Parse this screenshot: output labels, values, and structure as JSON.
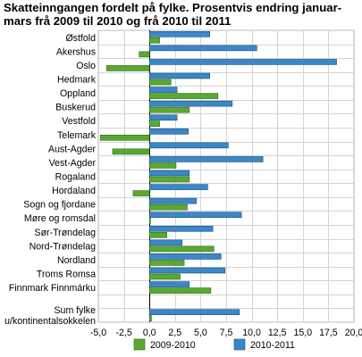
{
  "chart_data": {
    "type": "bar",
    "orientation": "horizontal",
    "title": "Skatteinngangen fordelt på fylke. Prosentvis endring januar-mars frå 2009 til 2010 og frå 2010 til 2011",
    "categories": [
      "Østfold",
      "Akershus",
      "Oslo",
      "Hedmark",
      "Oppland",
      "Buskerud",
      "Vestfold",
      "Telemark",
      "Aust-Agder",
      "Vest-Agder",
      "Rogaland",
      "Hordaland",
      "Sogn og fjordane",
      "Møre og romsdal",
      "Sør-Trøndelag",
      "Nord-Trøndelag",
      "Nordland",
      "Troms Romsa",
      "Finnmark Finnmárku",
      "",
      "Sum fylke u/kontinentalsokkelen"
    ],
    "category_lines": [
      [
        "Østfold"
      ],
      [
        "Akershus"
      ],
      [
        "Oslo"
      ],
      [
        "Hedmark"
      ],
      [
        "Oppland"
      ],
      [
        "Buskerud"
      ],
      [
        "Vestfold"
      ],
      [
        "Telemark"
      ],
      [
        "Aust-Agder"
      ],
      [
        "Vest-Agder"
      ],
      [
        "Rogaland"
      ],
      [
        "Hordaland"
      ],
      [
        "Sogn og fjordane"
      ],
      [
        "Møre og romsdal"
      ],
      [
        "Sør-Trøndelag"
      ],
      [
        "Nord-Trøndelag"
      ],
      [
        "Nordland"
      ],
      [
        "Troms Romsa"
      ],
      [
        "Finnmark Finnmárku"
      ],
      [],
      [
        "Sum fylke",
        "u/kontinentalsokkelen"
      ]
    ],
    "series": [
      {
        "name": "2009-2010",
        "color": "#5aa832",
        "values": [
          1.0,
          -1.0,
          -4.2,
          2.1,
          6.7,
          3.9,
          1.0,
          -4.8,
          -3.6,
          2.6,
          3.9,
          -1.6,
          3.7,
          0.1,
          1.7,
          6.3,
          3.4,
          3.0,
          6.0,
          null,
          0.2
        ]
      },
      {
        "name": "2010-2011",
        "color": "#3b87c8",
        "values": [
          5.9,
          10.5,
          18.3,
          5.9,
          2.7,
          8.1,
          2.7,
          3.8,
          7.7,
          11.1,
          3.9,
          5.7,
          4.6,
          9.0,
          6.2,
          3.2,
          7.0,
          7.4,
          3.9,
          null,
          8.8
        ]
      }
    ],
    "xlim": [
      -5.0,
      20.0
    ],
    "xticks": [
      "-5,0",
      "-2,5",
      "0,0",
      "2,5",
      "5,0",
      "7,5",
      "10,0",
      "12,5",
      "15,0",
      "17,5",
      "20,0"
    ],
    "grid": true,
    "legend_position": "bottom"
  }
}
